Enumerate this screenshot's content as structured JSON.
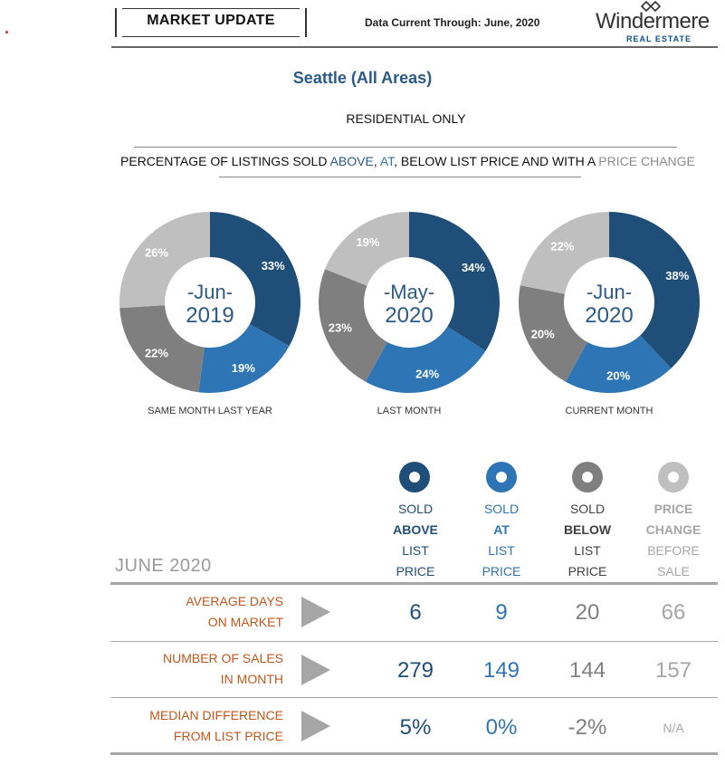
{
  "header": {
    "title": "MARKET UPDATE",
    "data_current_label": "Data Current Through:",
    "data_current_value": "June, 2020",
    "logo_word": "Windermere",
    "logo_sub": "REAL ESTATE"
  },
  "region": "Seattle (All Areas)",
  "subtitle": "RESIDENTIAL ONLY",
  "headline": {
    "prefix": "PERCENTAGE OF LISTINGS SOLD ",
    "above": "ABOVE",
    "sep1": ", ",
    "at": "AT",
    "sep2": ", BELOW LIST PRICE AND WITH A ",
    "price_change": "PRICE CHANGE"
  },
  "colors": {
    "above": "#1f4e79",
    "at": "#2e75b6",
    "below": "#7f7f7f",
    "price_change": "#bfbfbf",
    "row_label": "#c0571b"
  },
  "chart_data": [
    {
      "type": "pie",
      "center_top": "-Jun-",
      "center_bottom": "2019",
      "caption": "SAME MONTH LAST YEAR",
      "categories": [
        "Sold Above",
        "Sold At",
        "Sold Below",
        "Price Change"
      ],
      "values": [
        33,
        19,
        22,
        26
      ],
      "labels": [
        "33%",
        "19%",
        "22%",
        "26%"
      ]
    },
    {
      "type": "pie",
      "center_top": "-May-",
      "center_bottom": "2020",
      "caption": "LAST MONTH",
      "categories": [
        "Sold Above",
        "Sold At",
        "Sold Below",
        "Price Change"
      ],
      "values": [
        34,
        24,
        23,
        19
      ],
      "labels": [
        "34%",
        "24%",
        "23%",
        "19%"
      ]
    },
    {
      "type": "pie",
      "center_top": "-Jun-",
      "center_bottom": "2020",
      "caption": "CURRENT MONTH",
      "categories": [
        "Sold Above",
        "Sold At",
        "Sold Below",
        "Price Change"
      ],
      "values": [
        38,
        20,
        20,
        22
      ],
      "labels": [
        "38%",
        "20%",
        "20%",
        "22%"
      ]
    }
  ],
  "table": {
    "month_label": "JUNE 2020",
    "columns": [
      {
        "line1": "SOLD",
        "line2": "ABOVE",
        "line3": "LIST",
        "line4": "PRICE"
      },
      {
        "line1": "SOLD",
        "line2": "AT",
        "line3": "LIST",
        "line4": "PRICE"
      },
      {
        "line1": "SOLD",
        "line2": "BELOW",
        "line3": "LIST",
        "line4": "PRICE"
      },
      {
        "line1": "PRICE",
        "line2": "CHANGE",
        "line3": "BEFORE",
        "line4": "SALE"
      }
    ],
    "rows": [
      {
        "label1": "AVERAGE DAYS",
        "label2": "ON MARKET",
        "values": [
          "6",
          "9",
          "20",
          "66"
        ]
      },
      {
        "label1": "NUMBER OF SALES",
        "label2": "IN MONTH",
        "values": [
          "279",
          "149",
          "144",
          "157"
        ]
      },
      {
        "label1": "MEDIAN DIFFERENCE",
        "label2": "FROM LIST PRICE",
        "values": [
          "5%",
          "0%",
          "-2%",
          "N/A"
        ]
      }
    ]
  }
}
